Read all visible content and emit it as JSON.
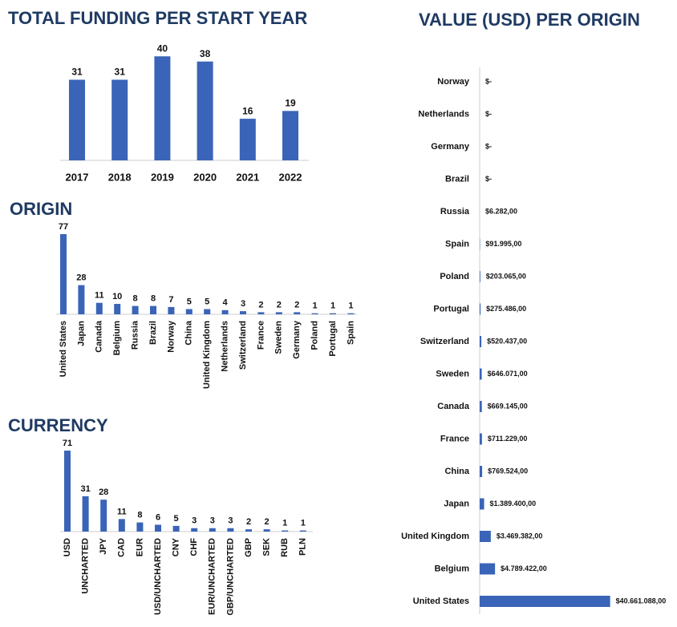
{
  "chart_data": [
    {
      "type": "bar",
      "title": "TOTAL FUNDING PER START YEAR",
      "categories": [
        "2017",
        "2018",
        "2019",
        "2020",
        "2021",
        "2022"
      ],
      "values": [
        31,
        31,
        40,
        38,
        16,
        19
      ],
      "color": "#3a64b8",
      "ylim": [
        0,
        41
      ]
    },
    {
      "type": "bar",
      "title": "ORIGIN",
      "categories": [
        "United States",
        "Japan",
        "Canada",
        "Belgium",
        "Russia",
        "Brazil",
        "Norway",
        "China",
        "United Kingdom",
        "Netherlands",
        "Switzerland",
        "France",
        "Sweden",
        "Germany",
        "Poland",
        "Portugal",
        "Spain"
      ],
      "values": [
        77,
        28,
        11,
        10,
        8,
        8,
        7,
        5,
        5,
        4,
        3,
        2,
        2,
        2,
        1,
        1,
        1
      ],
      "color": "#3a64b8",
      "ylim": [
        0,
        77
      ]
    },
    {
      "type": "bar",
      "title": "CURRENCY",
      "categories": [
        "USD",
        "UNCHARTED",
        "JPY",
        "CAD",
        "EUR",
        "USD/UNCHARTED",
        "CNY",
        "CHF",
        "EUR/UNCHARTED",
        "GBP/UNCHARTED",
        "GBP",
        "SEK",
        "RUB",
        "PLN"
      ],
      "values": [
        71,
        31,
        28,
        11,
        8,
        6,
        5,
        3,
        3,
        3,
        2,
        2,
        1,
        1
      ],
      "color": "#3a64b8",
      "ylim": [
        0,
        71
      ]
    },
    {
      "type": "hbar",
      "title": "VALUE (USD) PER ORIGIN",
      "categories": [
        "Norway",
        "Netherlands",
        "Germany",
        "Brazil",
        "Russia",
        "Spain",
        "Poland",
        "Portugal",
        "Switzerland",
        "Sweden",
        "Canada",
        "France",
        "China",
        "Japan",
        "United Kingdom",
        "Belgium",
        "United States"
      ],
      "values": [
        0,
        0,
        0,
        0,
        6282,
        91995,
        203065,
        275486,
        520437,
        646071,
        669145,
        711229,
        769524,
        1389400,
        3469382,
        4789422,
        40661088
      ],
      "value_labels": [
        "$-",
        "$-",
        "$-",
        "$-",
        "$6.282,00",
        "$91.995,00",
        "$203.065,00",
        "$275.486,00",
        "$520.437,00",
        "$646.071,00",
        "$669.145,00",
        "$711.229,00",
        "$769.524,00",
        "$1.389.400,00",
        "$3.469.382,00",
        "$4.789.422,00",
        "$40.661.088,00"
      ],
      "color": "#3a64b8",
      "xlim": [
        0,
        41000000
      ]
    }
  ]
}
